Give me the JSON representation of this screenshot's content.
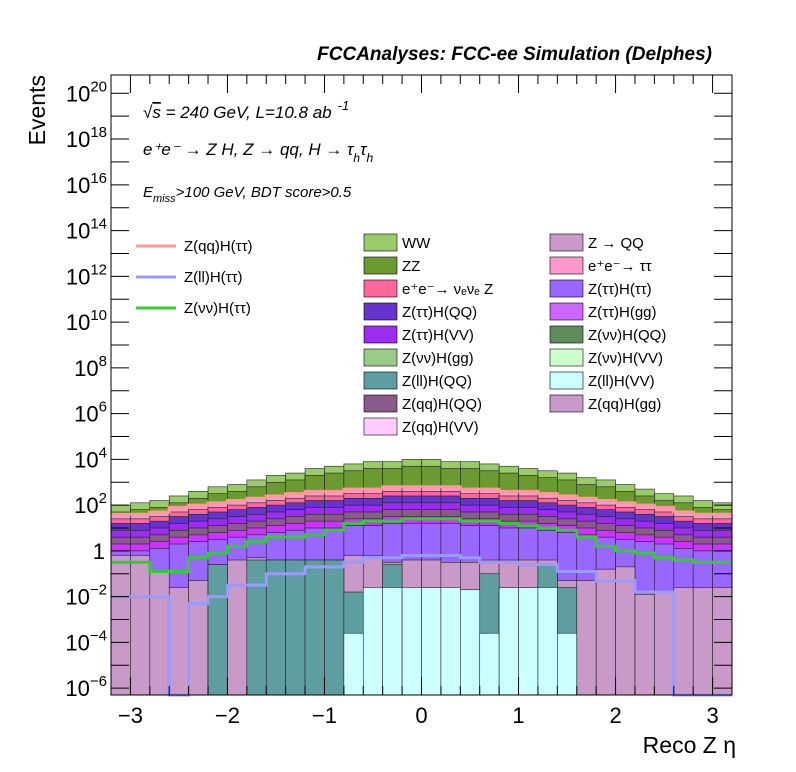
{
  "chart_data": {
    "type": "stacked-histogram",
    "title": "FCCAnalyses: FCC-ee Simulation (Delphes)",
    "annotations": {
      "line1_prefix": "√",
      "line1_s": "s",
      "line1": " = 240 GeV, L=10.8 ab",
      "line1_sup": "-1",
      "line2": "e⁺e⁻ → Z H, Z → qq, H → τ",
      "line2_sub1": "h",
      "line2_tau": "τ",
      "line2_sub2": "h",
      "line3_E": "E",
      "line3_sub": "miss",
      "line3_rest": ">100 GeV, BDT score>0.5"
    },
    "xlabel": "Reco Z η",
    "ylabel": "Events",
    "xlim": [
      -3.2,
      3.2
    ],
    "ylim_log10": [
      -6.3,
      20.8
    ],
    "log_y": true,
    "x_ticks": [
      {
        "v": -3,
        "label": "−3"
      },
      {
        "v": -2,
        "label": "−2"
      },
      {
        "v": -1,
        "label": "−1"
      },
      {
        "v": 0,
        "label": "0"
      },
      {
        "v": 1,
        "label": "1"
      },
      {
        "v": 2,
        "label": "2"
      },
      {
        "v": 3,
        "label": "3"
      }
    ],
    "y_ticks": [
      {
        "e": -6,
        "base": "10",
        "exp": "−6",
        "plain": ""
      },
      {
        "e": -4,
        "base": "10",
        "exp": "−4",
        "plain": ""
      },
      {
        "e": -2,
        "base": "10",
        "exp": "−2",
        "plain": ""
      },
      {
        "e": 0,
        "base": "",
        "exp": "",
        "plain": "1"
      },
      {
        "e": 2,
        "base": "10",
        "exp": "2",
        "plain": ""
      },
      {
        "e": 4,
        "base": "10",
        "exp": "4",
        "plain": ""
      },
      {
        "e": 6,
        "base": "10",
        "exp": "6",
        "plain": ""
      },
      {
        "e": 8,
        "base": "10",
        "exp": "8",
        "plain": ""
      },
      {
        "e": 10,
        "base": "10",
        "exp": "10",
        "plain": ""
      },
      {
        "e": 12,
        "base": "10",
        "exp": "12",
        "plain": ""
      },
      {
        "e": 14,
        "base": "10",
        "exp": "14",
        "plain": ""
      },
      {
        "e": 16,
        "base": "10",
        "exp": "16",
        "plain": ""
      },
      {
        "e": 18,
        "base": "10",
        "exp": "18",
        "plain": ""
      },
      {
        "e": 20,
        "base": "10",
        "exp": "20",
        "plain": ""
      }
    ],
    "bins": {
      "start": -3.2,
      "width": 0.2,
      "count": 32
    },
    "stack_levels_log10": [
      {
        "key": "zll_vv",
        "color": "#ccffff",
        "values": [
          -7,
          -7,
          -7,
          -7,
          -7,
          -7,
          -7,
          -7,
          -7,
          -7,
          -7,
          -7,
          -3.6,
          -1.6,
          -1.6,
          -1.6,
          -1.6,
          -1.6,
          -1.7,
          -3.6,
          -1.6,
          -1.6,
          -1.6,
          -3.6,
          -7,
          -7,
          -7,
          -7,
          -7,
          -7,
          -7,
          -7
        ]
      },
      {
        "key": "zll_qq",
        "color": "#5f9ea0",
        "values": [
          -7,
          -7,
          -7,
          -7,
          -7,
          -0.6,
          -7,
          -0.4,
          -0.4,
          -0.4,
          -0.4,
          -0.4,
          -1.8,
          -1.8,
          -0.6,
          -1.8,
          -1.6,
          -1.8,
          -1.7,
          -1.0,
          -1.6,
          -1.6,
          -0.6,
          -1.6,
          -7,
          -7,
          -7,
          -7,
          -7,
          -7,
          -7,
          -7
        ]
      },
      {
        "key": "zqq_gg",
        "color": "#c999c9",
        "values": [
          -0.2,
          -0.2,
          -0.9,
          -1.6,
          -1.3,
          -0.6,
          -0.4,
          -0.3,
          -0.4,
          -0.4,
          -0.4,
          -0.4,
          -0.2,
          -0.2,
          -0.5,
          -0.4,
          -0.4,
          -0.5,
          -0.5,
          -0.4,
          -0.4,
          -0.4,
          -0.4,
          -1.3,
          -1.3,
          -0.8,
          -0.7,
          -1.9,
          -1.8,
          -1.6,
          -1.6,
          -1.6
        ]
      },
      {
        "key": "ztt",
        "color": "#9966ff",
        "values": [
          0.0,
          0.0,
          0.1,
          0.3,
          0.4,
          0.5,
          0.6,
          0.7,
          0.8,
          0.9,
          1.0,
          1.0,
          1.1,
          1.1,
          1.2,
          1.2,
          1.2,
          1.2,
          1.1,
          1.1,
          1.0,
          1.0,
          0.9,
          0.8,
          0.7,
          0.6,
          0.5,
          0.4,
          0.3,
          0.1,
          0.0,
          0.0
        ]
      },
      {
        "key": "zqq_vv",
        "color": "#cc33ff",
        "values": [
          0.3,
          0.3,
          0.4,
          0.6,
          0.7,
          0.8,
          0.9,
          1.0,
          1.1,
          1.2,
          1.3,
          1.3,
          1.4,
          1.4,
          1.5,
          1.5,
          1.5,
          1.5,
          1.4,
          1.4,
          1.3,
          1.3,
          1.2,
          1.1,
          1.0,
          0.9,
          0.8,
          0.7,
          0.6,
          0.4,
          0.3,
          0.3
        ]
      },
      {
        "key": "znn_qq",
        "color": "#8a5a8a",
        "values": [
          0.6,
          0.6,
          0.7,
          0.9,
          1.0,
          1.1,
          1.2,
          1.3,
          1.4,
          1.5,
          1.6,
          1.6,
          1.7,
          1.7,
          1.8,
          1.8,
          1.8,
          1.8,
          1.7,
          1.7,
          1.6,
          1.6,
          1.5,
          1.4,
          1.3,
          1.2,
          1.1,
          1.0,
          0.9,
          0.7,
          0.6,
          0.6
        ]
      },
      {
        "key": "zqq_qq",
        "color": "#9b2cf0",
        "values": [
          0.9,
          0.9,
          1.0,
          1.2,
          1.3,
          1.4,
          1.5,
          1.6,
          1.7,
          1.8,
          1.9,
          1.9,
          2.0,
          2.0,
          2.1,
          2.1,
          2.1,
          2.1,
          2.0,
          2.0,
          1.9,
          1.9,
          1.8,
          1.7,
          1.6,
          1.5,
          1.4,
          1.3,
          1.2,
          1.0,
          0.9,
          0.9
        ]
      },
      {
        "key": "ztt_qq",
        "color": "#6633cc",
        "values": [
          1.2,
          1.2,
          1.3,
          1.5,
          1.6,
          1.7,
          1.8,
          1.9,
          2.0,
          2.1,
          2.2,
          2.2,
          2.3,
          2.3,
          2.4,
          2.4,
          2.4,
          2.4,
          2.3,
          2.3,
          2.2,
          2.2,
          2.1,
          2.0,
          1.9,
          1.8,
          1.7,
          1.6,
          1.5,
          1.3,
          1.2,
          1.2
        ]
      },
      {
        "key": "nunuz",
        "color": "#ff6699",
        "values": [
          1.4,
          1.4,
          1.5,
          1.7,
          1.8,
          1.9,
          2.0,
          2.1,
          2.2,
          2.3,
          2.4,
          2.4,
          2.5,
          2.5,
          2.6,
          2.6,
          2.6,
          2.6,
          2.5,
          2.5,
          2.4,
          2.4,
          2.3,
          2.2,
          2.1,
          2.0,
          1.9,
          1.8,
          1.7,
          1.5,
          1.4,
          1.4
        ]
      },
      {
        "key": "eett",
        "color": "#ff99cc",
        "values": [
          1.6,
          1.6,
          1.7,
          1.9,
          2.0,
          2.1,
          2.2,
          2.3,
          2.4,
          2.5,
          2.6,
          2.6,
          2.7,
          2.7,
          2.8,
          2.8,
          2.8,
          2.8,
          2.7,
          2.7,
          2.6,
          2.6,
          2.5,
          2.4,
          2.3,
          2.2,
          2.1,
          2.0,
          1.9,
          1.7,
          1.6,
          1.6
        ]
      },
      {
        "key": "zz",
        "color": "#6b9b30",
        "values": [
          1.7,
          1.8,
          1.9,
          2.1,
          2.3,
          2.5,
          2.6,
          2.8,
          3.0,
          3.1,
          3.3,
          3.4,
          3.5,
          3.6,
          3.6,
          3.7,
          3.7,
          3.6,
          3.6,
          3.5,
          3.4,
          3.3,
          3.2,
          3.1,
          2.9,
          2.8,
          2.6,
          2.4,
          2.2,
          2.1,
          1.9,
          1.8
        ]
      },
      {
        "key": "ww",
        "color": "#99cc66",
        "values": [
          2.0,
          2.1,
          2.2,
          2.4,
          2.6,
          2.8,
          2.9,
          3.1,
          3.3,
          3.4,
          3.6,
          3.7,
          3.8,
          3.9,
          3.9,
          4.0,
          4.0,
          3.9,
          3.9,
          3.8,
          3.7,
          3.6,
          3.5,
          3.4,
          3.2,
          3.1,
          2.9,
          2.7,
          2.5,
          2.4,
          2.2,
          2.1
        ]
      }
    ],
    "overlay_lines_log10": [
      {
        "key": "sig_qq",
        "color": "#ff9999",
        "values": [
          1.6,
          1.6,
          1.7,
          1.9,
          2.0,
          2.1,
          2.2,
          2.3,
          2.4,
          2.5,
          2.6,
          2.6,
          2.7,
          2.7,
          2.8,
          2.8,
          2.8,
          2.8,
          2.7,
          2.7,
          2.6,
          2.6,
          2.5,
          2.4,
          2.3,
          2.2,
          2.1,
          2.0,
          1.9,
          1.7,
          1.6,
          1.6
        ]
      },
      {
        "key": "sig_nn",
        "color": "#33cc33",
        "values": [
          -0.5,
          -0.5,
          -0.9,
          -0.9,
          -0.3,
          -0.1,
          0.2,
          0.4,
          0.6,
          0.6,
          0.7,
          0.9,
          1.2,
          1.3,
          1.3,
          1.4,
          1.4,
          1.4,
          1.3,
          1.3,
          1.2,
          1.1,
          1.0,
          0.9,
          0.6,
          0.2,
          0.0,
          -0.1,
          -0.3,
          -0.4,
          -0.5,
          -0.5
        ]
      },
      {
        "key": "sig_ll",
        "color": "#9999ff",
        "values": [
          -2.0,
          -2.0,
          -2.0,
          -7,
          -2.3,
          -2.0,
          -1.5,
          -1.5,
          -1.0,
          -1.0,
          -0.7,
          -0.7,
          -0.5,
          -0.3,
          -0.3,
          -0.2,
          -0.2,
          -0.2,
          -0.3,
          -0.5,
          -0.5,
          -0.6,
          -0.6,
          -0.9,
          -0.9,
          -1.3,
          -1.3,
          -1.8,
          -1.8,
          -7,
          -7,
          -7
        ]
      }
    ],
    "legend": {
      "col1": [
        {
          "label": "Z(qq)H(ττ)",
          "kind": "line",
          "color": "#ff9999"
        },
        {
          "label": "Z(ll)H(ττ)",
          "kind": "line",
          "color": "#9999ff"
        },
        {
          "label": "Z(νν)H(ττ)",
          "kind": "line",
          "color": "#33cc33"
        }
      ],
      "col2": [
        {
          "label": "WW",
          "color": "#99cc66"
        },
        {
          "label": "ZZ",
          "color": "#6b9b30"
        },
        {
          "label": "e⁺e⁻→ νₑνₑ Z",
          "color": "#ff6699"
        },
        {
          "label": "Z(ττ)H(QQ)",
          "color": "#6633cc"
        },
        {
          "label": "Z(ττ)H(VV)",
          "color": "#9b2cf0"
        },
        {
          "label": "Z(νν)H(gg)",
          "color": "#99cc88"
        },
        {
          "label": "Z(ll)H(QQ)",
          "color": "#5f9ea0"
        },
        {
          "label": "Z(qq)H(QQ)",
          "color": "#8a5a8a"
        },
        {
          "label": "Z(qq)H(VV)",
          "color": "#ffccff"
        }
      ],
      "col3": [
        {
          "label": "Z → QQ",
          "color": "#c999c9"
        },
        {
          "label": "e⁺e⁻→ ττ",
          "color": "#ff99cc"
        },
        {
          "label": "Z(ττ)H(ττ)",
          "color": "#9966ff"
        },
        {
          "label": "Z(ττ)H(gg)",
          "color": "#cc66ff"
        },
        {
          "label": "Z(νν)H(QQ)",
          "color": "#5e8e5e"
        },
        {
          "label": "Z(νν)H(VV)",
          "color": "#ccffcc"
        },
        {
          "label": "Z(ll)H(VV)",
          "color": "#ccffff"
        },
        {
          "label": "Z(qq)H(gg)",
          "color": "#c999c9"
        }
      ]
    }
  }
}
